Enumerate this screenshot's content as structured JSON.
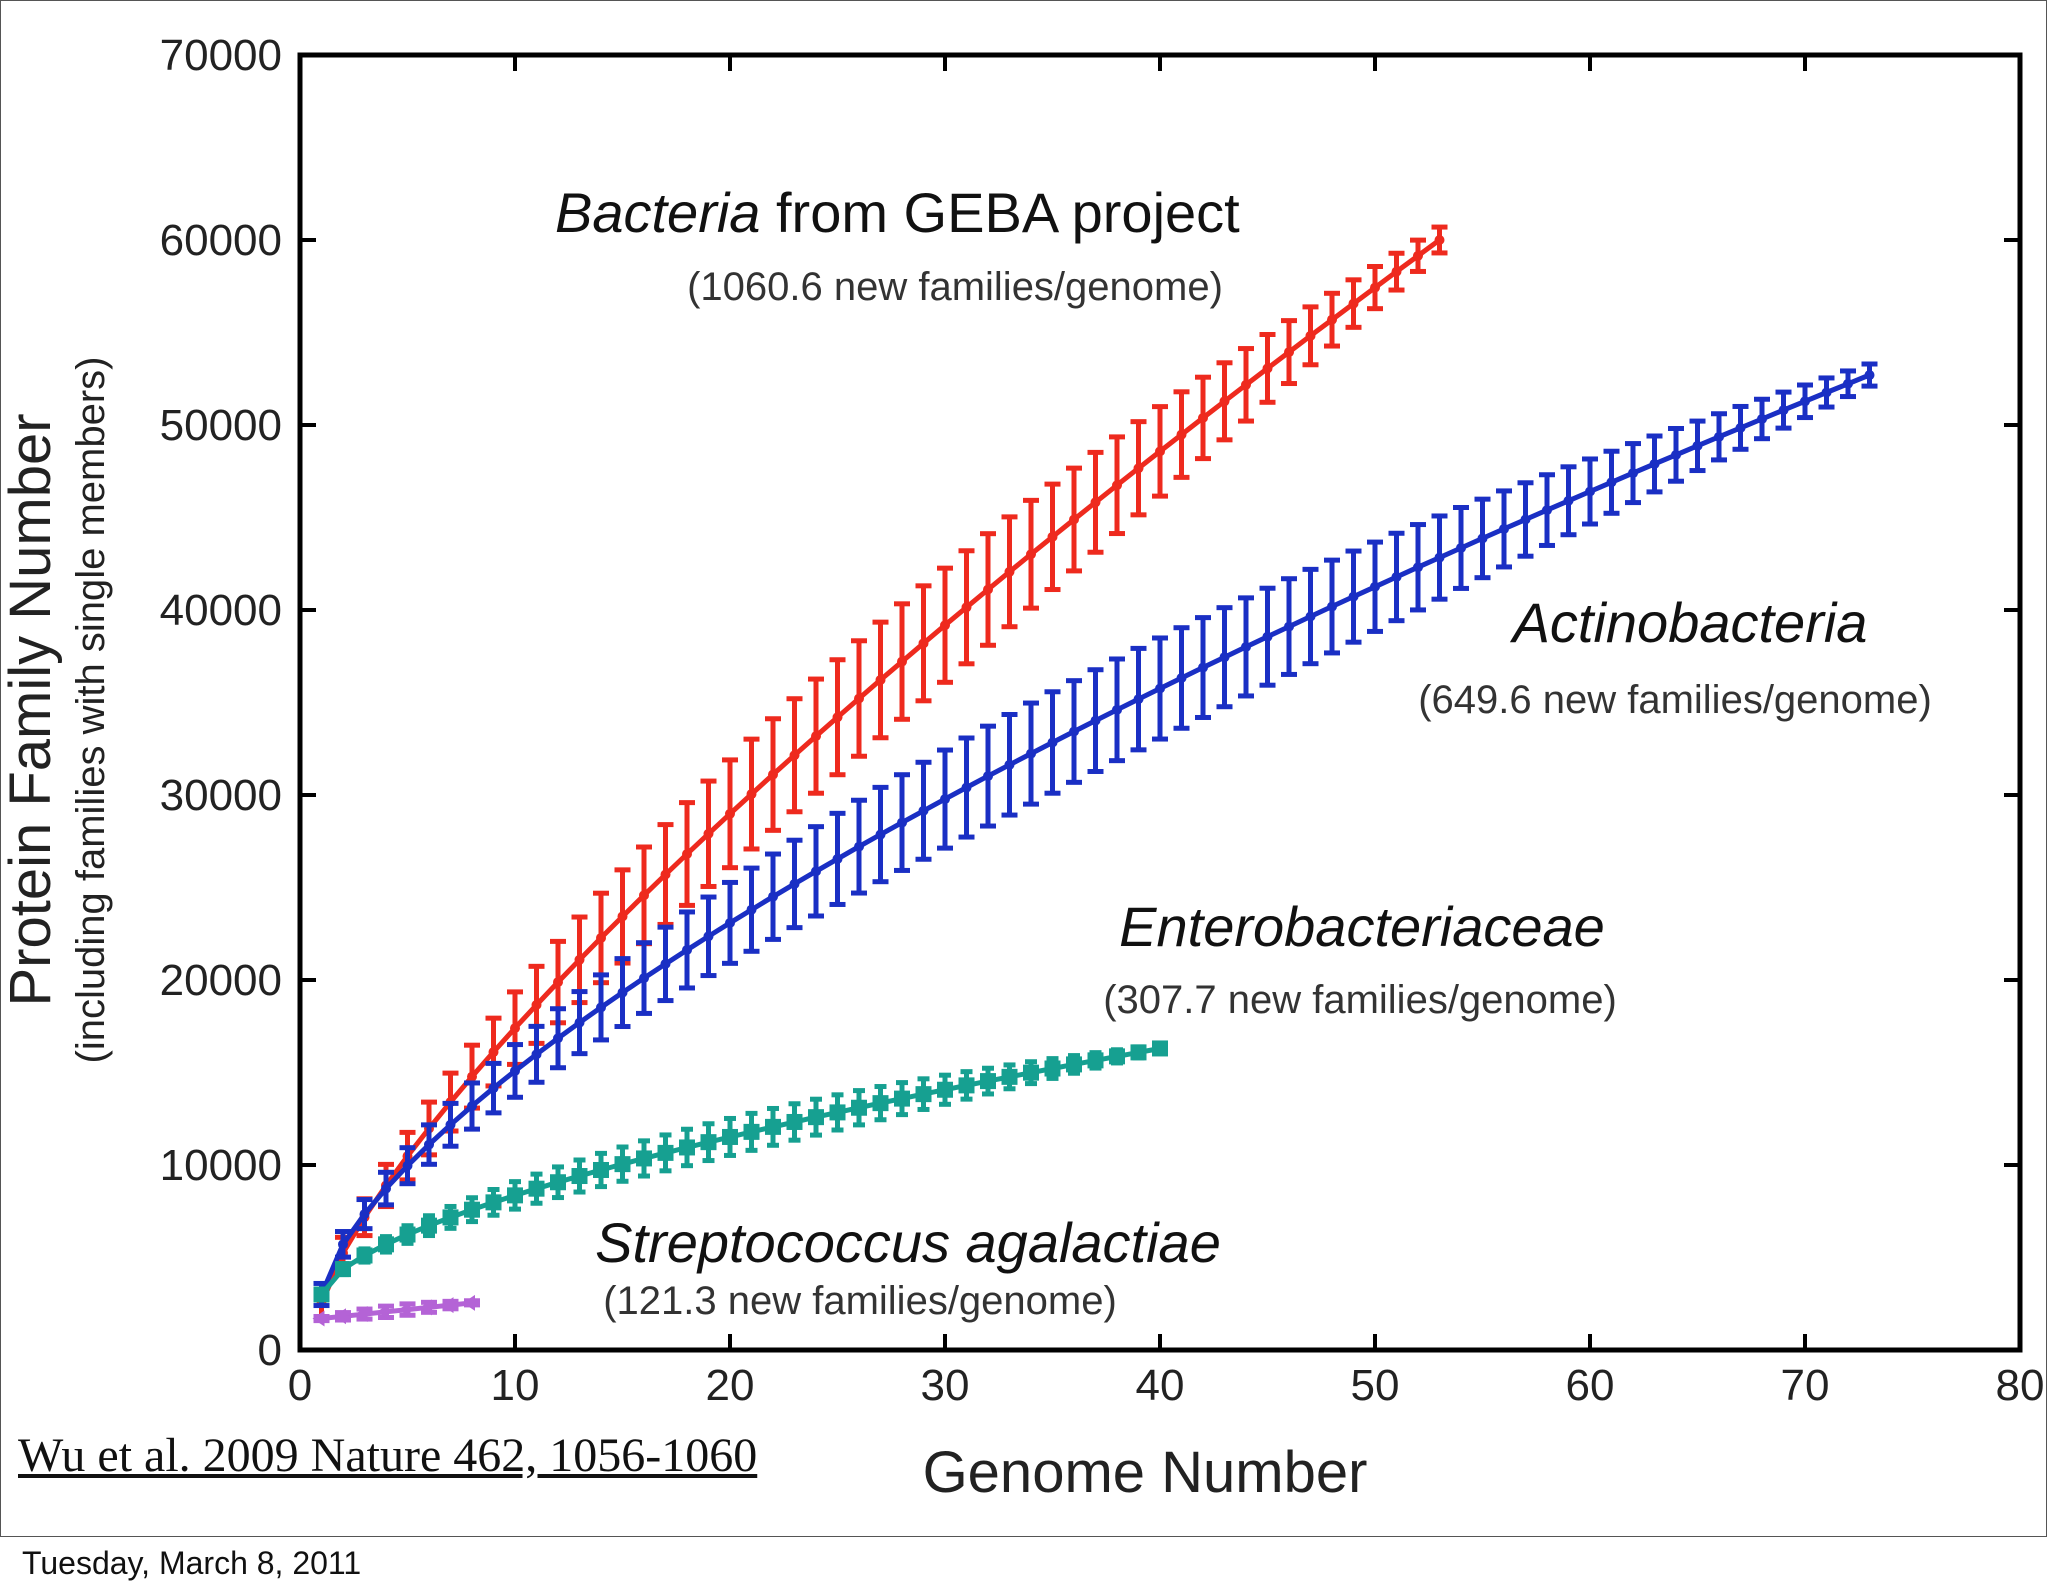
{
  "chart_data": {
    "type": "line",
    "xlabel": "Genome Number",
    "ylabel": "Protein Family Number",
    "ylabel_sub": "(including families with single members)",
    "xlim": [
      0,
      80
    ],
    "ylim": [
      0,
      70000
    ],
    "x_ticks": [
      "0",
      "10",
      "20",
      "30",
      "40",
      "50",
      "60",
      "70",
      "80"
    ],
    "y_ticks": [
      "0",
      "10000",
      "20000",
      "30000",
      "40000",
      "50000",
      "60000",
      "70000"
    ],
    "series": [
      {
        "name": "Bacteria from GEBA project",
        "name_italic": "Bacteria",
        "name_rest": " from GEBA project",
        "rate": "(1060.6 new families/genome)",
        "color": "#ee2a1e",
        "n": 53,
        "y1": 2500,
        "yn": 60000,
        "exponent": 0.77,
        "err_max": 2500
      },
      {
        "name": "Actinobacteria",
        "rate": "(649.6 new families/genome)",
        "color": "#1a2fc4",
        "n": 73,
        "y1": 3000,
        "yn": 52700,
        "exponent": 0.68,
        "err_max": 2200
      },
      {
        "name": "Enterobacteriaceae",
        "rate": "(307.7 new families/genome)",
        "color": "#16a091",
        "n": 40,
        "y1": 3000,
        "yn": 16300,
        "exponent": 0.62,
        "err_max": 800
      },
      {
        "name": "Streptococcus agalactiae",
        "rate": "(121.3 new families/genome)",
        "color": "#b463d6",
        "n": 8,
        "y1": 1700,
        "yn": 2550,
        "exponent": 1.0,
        "err_max": 250
      }
    ]
  },
  "citation": "Wu et al. 2009 Nature 462, 1056-1060",
  "footer_date": "Tuesday, March 8, 2011"
}
